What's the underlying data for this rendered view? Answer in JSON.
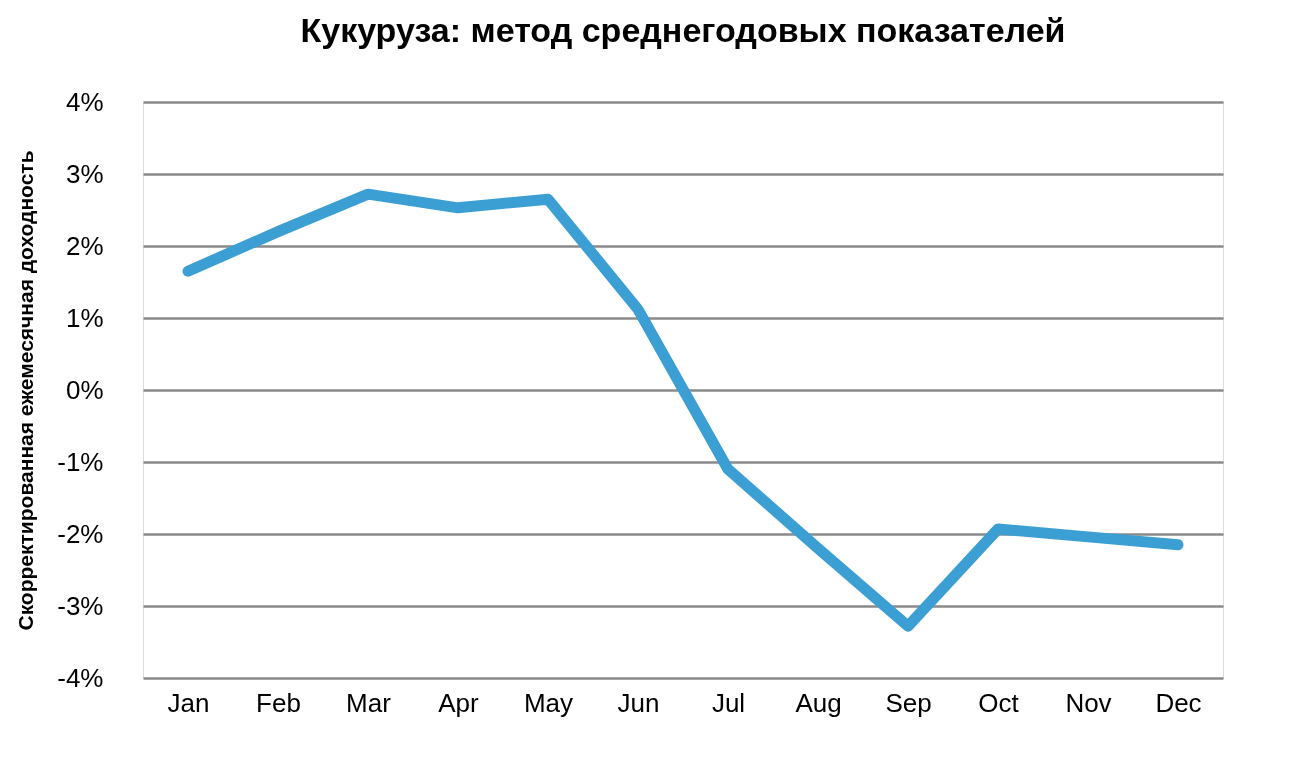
{
  "chart_data": {
    "type": "line",
    "title": "Кукуруза: метод среднегодовых показателей",
    "ylabel": "Скорректированная ежемесячная доходность",
    "categories": [
      "Jan",
      "Feb",
      "Mar",
      "Apr",
      "May",
      "Jun",
      "Jul",
      "Aug",
      "Sep",
      "Oct",
      "Nov",
      "Dec"
    ],
    "series": [
      {
        "color": "#3c9fd4",
        "values": [
          1.65,
          2.2,
          2.72,
          2.53,
          2.65,
          1.12,
          -1.1,
          -2.2,
          -3.28,
          -1.93,
          -2.04,
          -2.15
        ]
      }
    ],
    "ylim": [
      -4,
      4
    ],
    "yticks": [
      {
        "value": -4,
        "label": "-4%"
      },
      {
        "value": -3,
        "label": "-3%"
      },
      {
        "value": -2,
        "label": "-2%"
      },
      {
        "value": -1,
        "label": "-1%"
      },
      {
        "value": 0,
        "label": "0%"
      },
      {
        "value": 1,
        "label": "1%"
      },
      {
        "value": 2,
        "label": "2%"
      },
      {
        "value": 3,
        "label": "3%"
      },
      {
        "value": 4,
        "label": "4%"
      }
    ],
    "grid": "y",
    "marker": "none",
    "line_style": "solid"
  }
}
